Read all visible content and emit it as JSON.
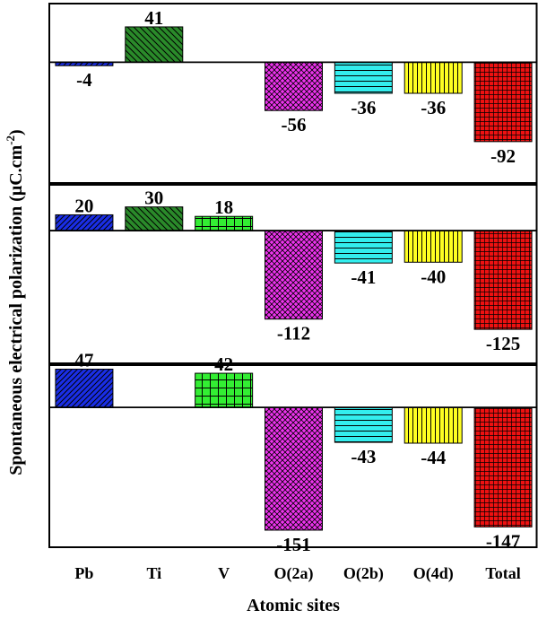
{
  "chart_data": {
    "type": "bar",
    "ylabel": "Spontaneous electrical polarization (μC.cm",
    "ylabel_sup": "-2",
    "ylabel_close": ")",
    "xlabel": "Atomic sites",
    "categories": [
      "Pb",
      "Ti",
      "V",
      "O(2a)",
      "O(2b)",
      "O(4d)",
      "Total"
    ],
    "grid": false,
    "layout": "three vertically stacked panels sharing one x axis",
    "panels": [
      {
        "values": [
          -4,
          41,
          null,
          -56,
          -36,
          -36,
          -92
        ],
        "labels": [
          "-4",
          "41",
          "",
          "-56",
          "-36",
          "-36",
          "-92"
        ],
        "ylim": [
          -140,
          68
        ]
      },
      {
        "values": [
          20,
          30,
          18,
          -112,
          -41,
          -40,
          -125
        ],
        "labels": [
          "20",
          "30",
          "18",
          "-112",
          "-41",
          "-40",
          "-125"
        ],
        "ylim": [
          -168,
          58
        ]
      },
      {
        "values": [
          47,
          null,
          42,
          -151,
          -43,
          -44,
          -147
        ],
        "labels": [
          "47",
          "",
          "42",
          "-151",
          "-43",
          "-44",
          "-147"
        ],
        "ylim": [
          -172,
          52
        ]
      }
    ],
    "colors": {
      "Pb": "#1a2ee6",
      "Ti": "#2a8a2a",
      "V": "#33ee33",
      "O(2a)": "#ee33ee",
      "O(2b)": "#33eeee",
      "O(4d)": "#ffff22",
      "Total": "#ee1111"
    },
    "patterns": {
      "Pb": "diagonal-hatch",
      "Ti": "diagonal-hatch",
      "V": "grid",
      "O(2a)": "crosshatch",
      "O(2b)": "horizontal-lines",
      "O(4d)": "vertical-lines",
      "Total": "fine-grid"
    }
  }
}
